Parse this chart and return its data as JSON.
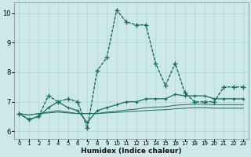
{
  "xlabel": "Humidex (Indice chaleur)",
  "bg_color": "#cce8e8",
  "line_color": "#1a6b60",
  "xlim": [
    -0.5,
    23.5
  ],
  "ylim": [
    5.75,
    10.35
  ],
  "xticks": [
    0,
    1,
    2,
    3,
    4,
    5,
    6,
    7,
    8,
    9,
    10,
    11,
    12,
    13,
    14,
    15,
    16,
    17,
    18,
    19,
    20,
    21,
    22,
    23
  ],
  "yticks": [
    6,
    7,
    8,
    9,
    10
  ],
  "grid_color": "#aed4d0",
  "line1_x": [
    0,
    1,
    2,
    3,
    4,
    5,
    6,
    7,
    8,
    9,
    10,
    11,
    12,
    13,
    14,
    15,
    16,
    17,
    18,
    19,
    20,
    21,
    22,
    23
  ],
  "line1_y": [
    6.6,
    6.4,
    6.5,
    7.2,
    7.0,
    7.1,
    7.0,
    6.1,
    8.05,
    8.5,
    10.1,
    9.7,
    9.6,
    9.6,
    8.3,
    7.55,
    8.3,
    7.3,
    7.0,
    7.0,
    7.0,
    7.5,
    7.5,
    7.5
  ],
  "line2_x": [
    0,
    1,
    2,
    3,
    4,
    5,
    6,
    7,
    8,
    9,
    10,
    11,
    12,
    13,
    14,
    15,
    16,
    17,
    18,
    19,
    20,
    21,
    22,
    23
  ],
  "line2_y": [
    6.6,
    6.4,
    6.5,
    6.8,
    7.0,
    6.8,
    6.7,
    6.3,
    6.7,
    6.8,
    6.9,
    7.0,
    7.0,
    7.1,
    7.1,
    7.1,
    7.25,
    7.2,
    7.2,
    7.2,
    7.1,
    7.1,
    7.1,
    7.1
  ],
  "line3_x": [
    0,
    1,
    2,
    3,
    4,
    5,
    6,
    7,
    8,
    9,
    10,
    11,
    12,
    13,
    14,
    15,
    16,
    17,
    18,
    19,
    20,
    21,
    22,
    23
  ],
  "line3_y": [
    6.6,
    6.55,
    6.6,
    6.65,
    6.7,
    6.65,
    6.6,
    6.6,
    6.6,
    6.65,
    6.68,
    6.72,
    6.75,
    6.8,
    6.82,
    6.83,
    6.88,
    6.9,
    6.92,
    6.92,
    6.9,
    6.9,
    6.9,
    6.9
  ],
  "line4_x": [
    0,
    1,
    2,
    3,
    4,
    5,
    6,
    7,
    8,
    9,
    10,
    11,
    12,
    13,
    14,
    15,
    16,
    17,
    18,
    19,
    20,
    21,
    22,
    23
  ],
  "line4_y": [
    6.6,
    6.55,
    6.6,
    6.62,
    6.65,
    6.62,
    6.6,
    6.6,
    6.6,
    6.62,
    6.64,
    6.66,
    6.68,
    6.7,
    6.72,
    6.73,
    6.76,
    6.78,
    6.8,
    6.8,
    6.78,
    6.78,
    6.78,
    6.78
  ]
}
